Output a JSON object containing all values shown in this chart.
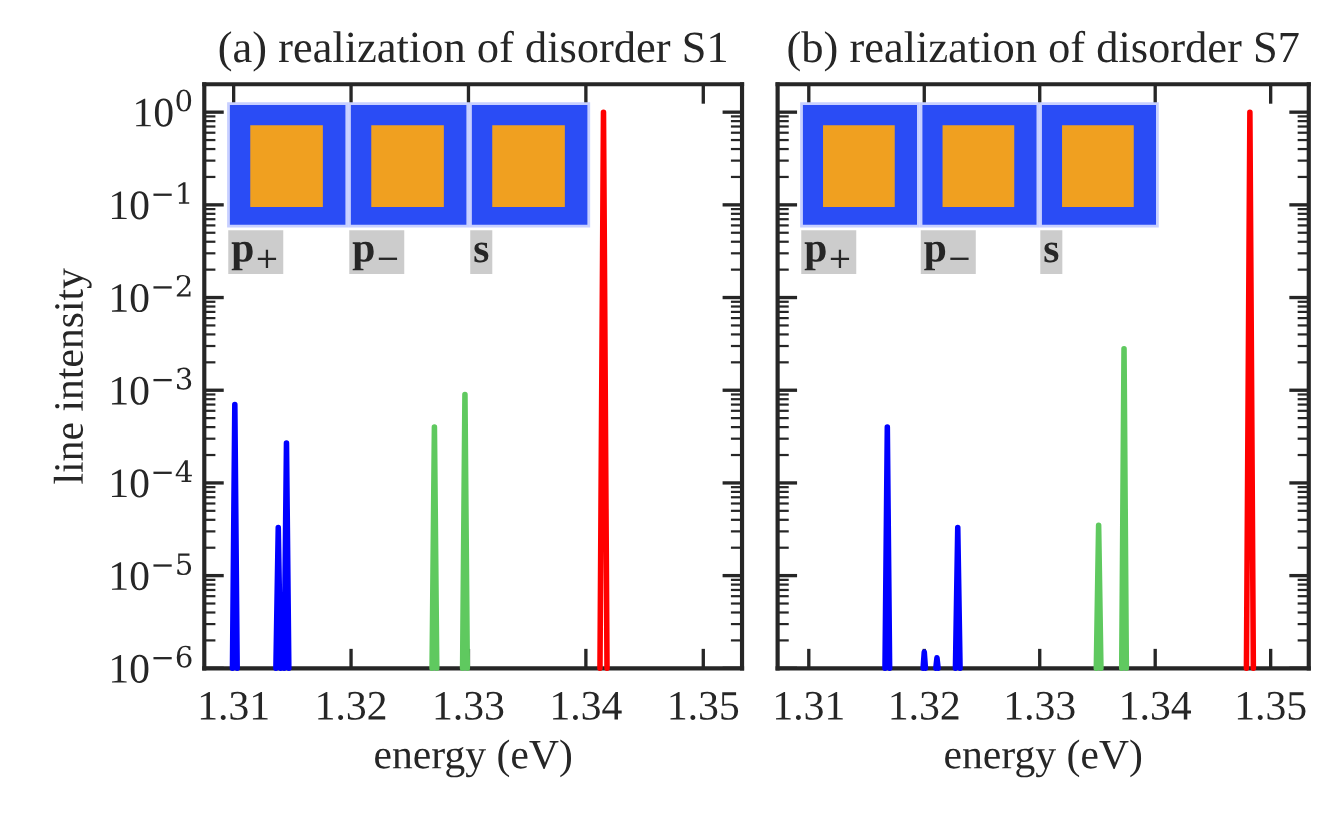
{
  "chart_data": [
    {
      "type": "line",
      "title": "(a) realization of disorder S1",
      "xlabel": "energy (eV)",
      "ylabel": "line intensity",
      "log": "y",
      "xlim": [
        1.3075,
        1.3533
      ],
      "ylim": [
        1e-06,
        2
      ],
      "xticks": [
        1.31,
        1.32,
        1.33,
        1.34,
        1.35
      ],
      "yticks": [
        {
          "value": 1e-06,
          "label": "10$^{−6}$"
        },
        {
          "value": 1e-05,
          "label": "10$^{−5}$"
        },
        {
          "value": 0.0001,
          "label": "10$^{−4}$"
        },
        {
          "value": 0.001,
          "label": "10$^{−3}$"
        },
        {
          "value": 0.01,
          "label": "10$^{−2}$"
        },
        {
          "value": 0.1,
          "label": "10$^{−1}$"
        },
        {
          "value": 1,
          "label": "10$^{0}$"
        }
      ],
      "grid": false,
      "legend": false,
      "annotations": [
        "p$_{+}$",
        "p$_{−}$",
        "s"
      ],
      "series": [
        {
          "color": "#0000ff",
          "x": [
            1.3099,
            1.3101,
            1.3103,
            null,
            1.3136,
            1.3138,
            1.314,
            null,
            1.3143,
            1.3145,
            1.3147
          ],
          "values": [
            1e-06,
            0.0007,
            1e-06,
            null,
            1e-06,
            3.3e-05,
            1e-06,
            null,
            1e-06,
            0.00027,
            1e-06
          ]
        },
        {
          "color": "#5fc95f",
          "x": [
            1.3269,
            1.3271,
            1.3273,
            null,
            1.3295,
            1.3297,
            1.3299
          ],
          "values": [
            1e-06,
            0.0004,
            1e-06,
            null,
            1e-06,
            0.0009,
            1e-06
          ]
        },
        {
          "color": "#ff0000",
          "x": [
            1.3412,
            1.3415,
            1.3418
          ],
          "values": [
            1e-06,
            1.0,
            1e-06
          ]
        }
      ]
    },
    {
      "type": "line",
      "title": "(b) realization of disorder S7",
      "xlabel": "energy (eV)",
      "log": "y",
      "xlim": [
        1.3073,
        1.3533
      ],
      "ylim": [
        1e-06,
        2
      ],
      "xticks": [
        1.31,
        1.32,
        1.33,
        1.34,
        1.35
      ],
      "yticks": [
        1e-06,
        1e-05,
        0.0001,
        0.001,
        0.01,
        0.1,
        1
      ],
      "tick_labels": "x",
      "grid": false,
      "legend": false,
      "annotations": [
        "p$_{+}$",
        "p$_{−}$",
        "s"
      ],
      "series": [
        {
          "color": "#0000ff",
          "x": [
            1.3166,
            1.3168,
            1.317,
            null,
            1.3199,
            1.32,
            1.3201,
            null,
            1.321,
            1.3211,
            1.3212,
            null,
            1.3227,
            1.3229,
            1.3231
          ],
          "values": [
            1e-06,
            0.0004,
            1e-06,
            null,
            1e-06,
            1.5e-06,
            1e-06,
            null,
            1e-06,
            1.3e-06,
            1e-06,
            null,
            1e-06,
            3.3e-05,
            1e-06
          ]
        },
        {
          "color": "#5fc95f",
          "x": [
            1.3349,
            1.3351,
            1.3353,
            null,
            1.3371,
            1.3373,
            1.3375
          ],
          "values": [
            1e-06,
            3.5e-05,
            1e-06,
            null,
            1e-06,
            0.0028,
            1e-06
          ]
        },
        {
          "color": "#ff0000",
          "x": [
            1.3479,
            1.3482,
            1.3485
          ],
          "values": [
            1e-06,
            1.0,
            1e-06
          ]
        }
      ]
    }
  ]
}
